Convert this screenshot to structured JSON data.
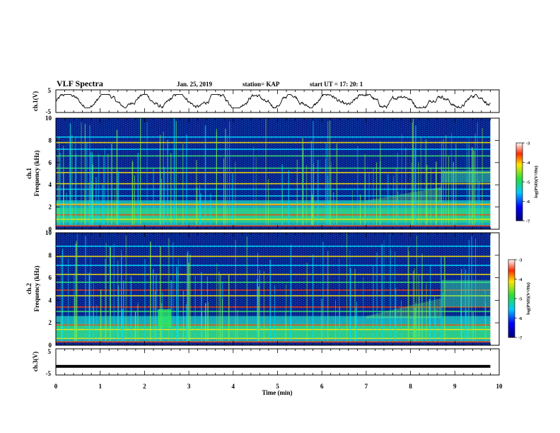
{
  "header": {
    "title": "VLF Spectra",
    "date": "Jan. 25, 2019",
    "station": "station= KAP",
    "start": "start  UT =    17: 20: 1"
  },
  "chart_data": [
    {
      "type": "line",
      "panel": "ch.1 waveform",
      "ylabel": "ch.1(V)",
      "ylim": [
        -5,
        5
      ],
      "yticks": [
        "5",
        "-5"
      ],
      "x_range_min": [
        0,
        9.8
      ],
      "trace_mean": 0.2,
      "trace_amplitude": 3
    },
    {
      "type": "heatmap",
      "panel": "ch.1 spectrogram",
      "ylabel": [
        "ch.1",
        "Frequency  (kHz)"
      ],
      "ylim": [
        0,
        10
      ],
      "yticks": [
        "0",
        "2",
        "4",
        "6",
        "8",
        "10"
      ],
      "x_range_min": [
        0,
        9.8
      ],
      "colorbar": {
        "label": "log(PSD)(V²/Hz)",
        "range": [
          -7,
          -3
        ],
        "ticks": [
          "-3",
          "-4",
          "-5",
          "-6",
          "-7"
        ]
      },
      "features": [
        "enhanced band 0.5-2.5 kHz",
        "strong band near 2.2 kHz",
        "periodic vertical impulses",
        "line at 5.2 kHz after 8.7 min"
      ]
    },
    {
      "type": "heatmap",
      "panel": "ch.2 spectrogram",
      "ylabel": [
        "ch.2",
        "Frequency  (kHz)"
      ],
      "ylim": [
        0,
        10
      ],
      "yticks": [
        "0",
        "2",
        "4",
        "6",
        "8",
        "10"
      ],
      "x_range_min": [
        0,
        9.8
      ],
      "colorbar": {
        "label": "log(PSD)(V²/Hz)",
        "range": [
          -7,
          -3
        ],
        "ticks": [
          "-3",
          "-4",
          "-5",
          "-6",
          "-7"
        ]
      },
      "features": [
        "enhanced band 0.5-2.5 kHz",
        "burst near 2.4 min",
        "rising emission 7-8.7 min"
      ]
    },
    {
      "type": "line",
      "panel": "ch.3 waveform",
      "ylabel": "ch.3(V)",
      "ylim": [
        -5,
        5
      ],
      "yticks": [
        "5",
        "-5"
      ],
      "x_range_min": [
        0,
        9.8
      ],
      "values": [
        -1.7,
        -1.7
      ]
    }
  ],
  "xaxis": {
    "label": "Time  (min)",
    "ticks": [
      "0",
      "1",
      "2",
      "3",
      "4",
      "5",
      "6",
      "7",
      "8",
      "9",
      "10"
    ],
    "range": [
      0,
      10
    ]
  },
  "colors": {
    "background": "#ffffff",
    "axes": "#000000",
    "spectrogram_bg": "#08208a"
  }
}
